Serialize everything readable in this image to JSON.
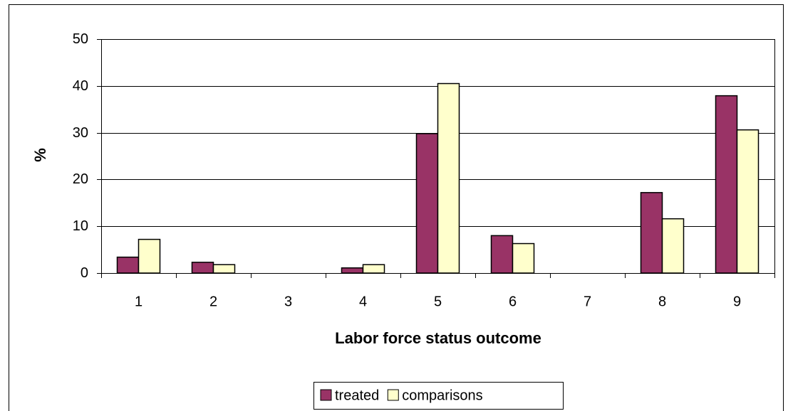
{
  "chart_data": {
    "type": "bar",
    "xlabel": "Labor force status outcome",
    "ylabel": "%",
    "categories": [
      "1",
      "2",
      "3",
      "4",
      "5",
      "6",
      "7",
      "8",
      "9"
    ],
    "series": [
      {
        "name": "treated",
        "color": "#993366",
        "values": [
          3.4,
          2.3,
          0,
          1.1,
          29.8,
          8.0,
          0,
          17.2,
          37.9
        ]
      },
      {
        "name": "comparisons",
        "color": "#ffffcc",
        "values": [
          7.2,
          1.8,
          0,
          1.8,
          40.5,
          6.3,
          0,
          11.6,
          30.6
        ]
      }
    ],
    "ylim": [
      0,
      50
    ],
    "yticks": [
      0,
      10,
      20,
      30,
      40,
      50
    ],
    "grid": true,
    "legend": "bottom"
  }
}
